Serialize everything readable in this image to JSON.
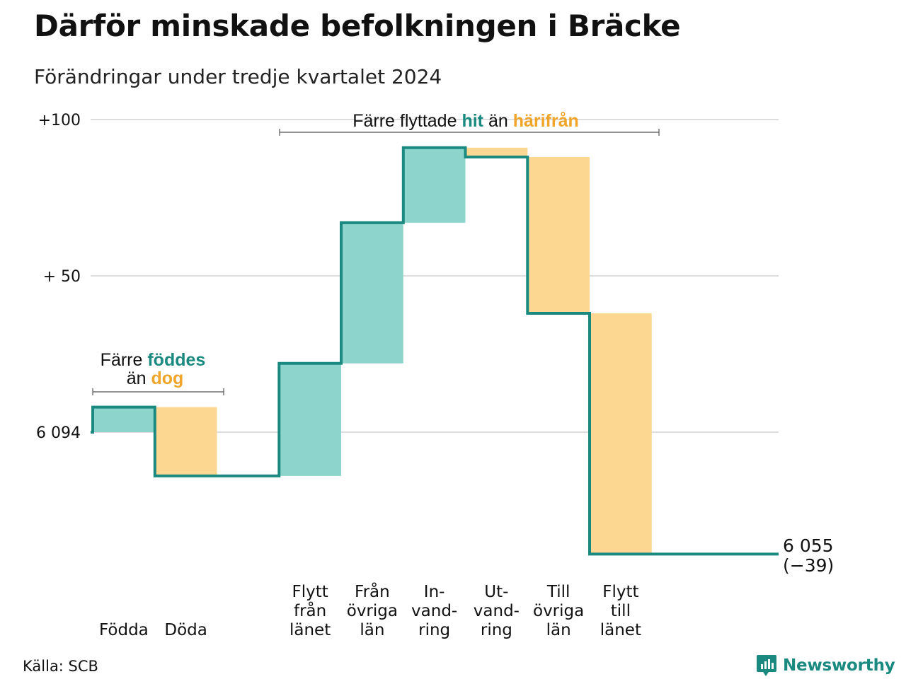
{
  "title": "Därför minskade befolkningen i Bräcke",
  "subtitle": "Förändringar under tredje kvartalet 2024",
  "source": "Källa: SCB",
  "brand": "Newsworthy",
  "colors": {
    "increase": "#8dd5cc",
    "decrease": "#fbd792",
    "step_line": "#1a8a80",
    "hit_text": "#1a8a80",
    "harifran_text": "#f0a428",
    "grid": "#dddddd"
  },
  "annotations": {
    "births_deaths": {
      "line1_prefix": "Färre",
      "line1_highlight": "föddes",
      "line2_prefix": "än",
      "line2_highlight": "dog"
    },
    "migration": {
      "prefix": "Färre flyttade",
      "highlight1": "hit",
      "middle": "än",
      "highlight2": "härifrån"
    }
  },
  "chart_data": {
    "type": "waterfall",
    "start_value": 6094,
    "start_label": "6 094",
    "end_value": 6055,
    "end_label": "6 055",
    "end_change_label": "(−39)",
    "y_ticks": [
      {
        "offset": 100,
        "label": "+100"
      },
      {
        "offset": 50,
        "label": "+ 50"
      },
      {
        "offset": 0,
        "label": "6 094"
      }
    ],
    "ylim_offset": [
      -40,
      100
    ],
    "grid": true,
    "categories": [
      {
        "label_lines": [
          "Födda"
        ],
        "change": 8,
        "kind": "increase"
      },
      {
        "label_lines": [
          "Döda"
        ],
        "change": -22,
        "kind": "decrease"
      },
      {
        "label_lines": [],
        "change": 0,
        "kind": "gap"
      },
      {
        "label_lines": [
          "Flytt",
          "från",
          "länet"
        ],
        "change": 36,
        "kind": "increase"
      },
      {
        "label_lines": [
          "Från",
          "övriga",
          "län"
        ],
        "change": 45,
        "kind": "increase"
      },
      {
        "label_lines": [
          "In-",
          "vand-",
          "ring"
        ],
        "change": 24,
        "kind": "increase"
      },
      {
        "label_lines": [
          "Ut-",
          "vand-",
          "ring"
        ],
        "change": -3,
        "kind": "decrease"
      },
      {
        "label_lines": [
          "Till",
          "övriga",
          "län"
        ],
        "change": -50,
        "kind": "decrease"
      },
      {
        "label_lines": [
          "Flytt",
          "till",
          "länet"
        ],
        "change": -77,
        "kind": "decrease"
      }
    ]
  }
}
